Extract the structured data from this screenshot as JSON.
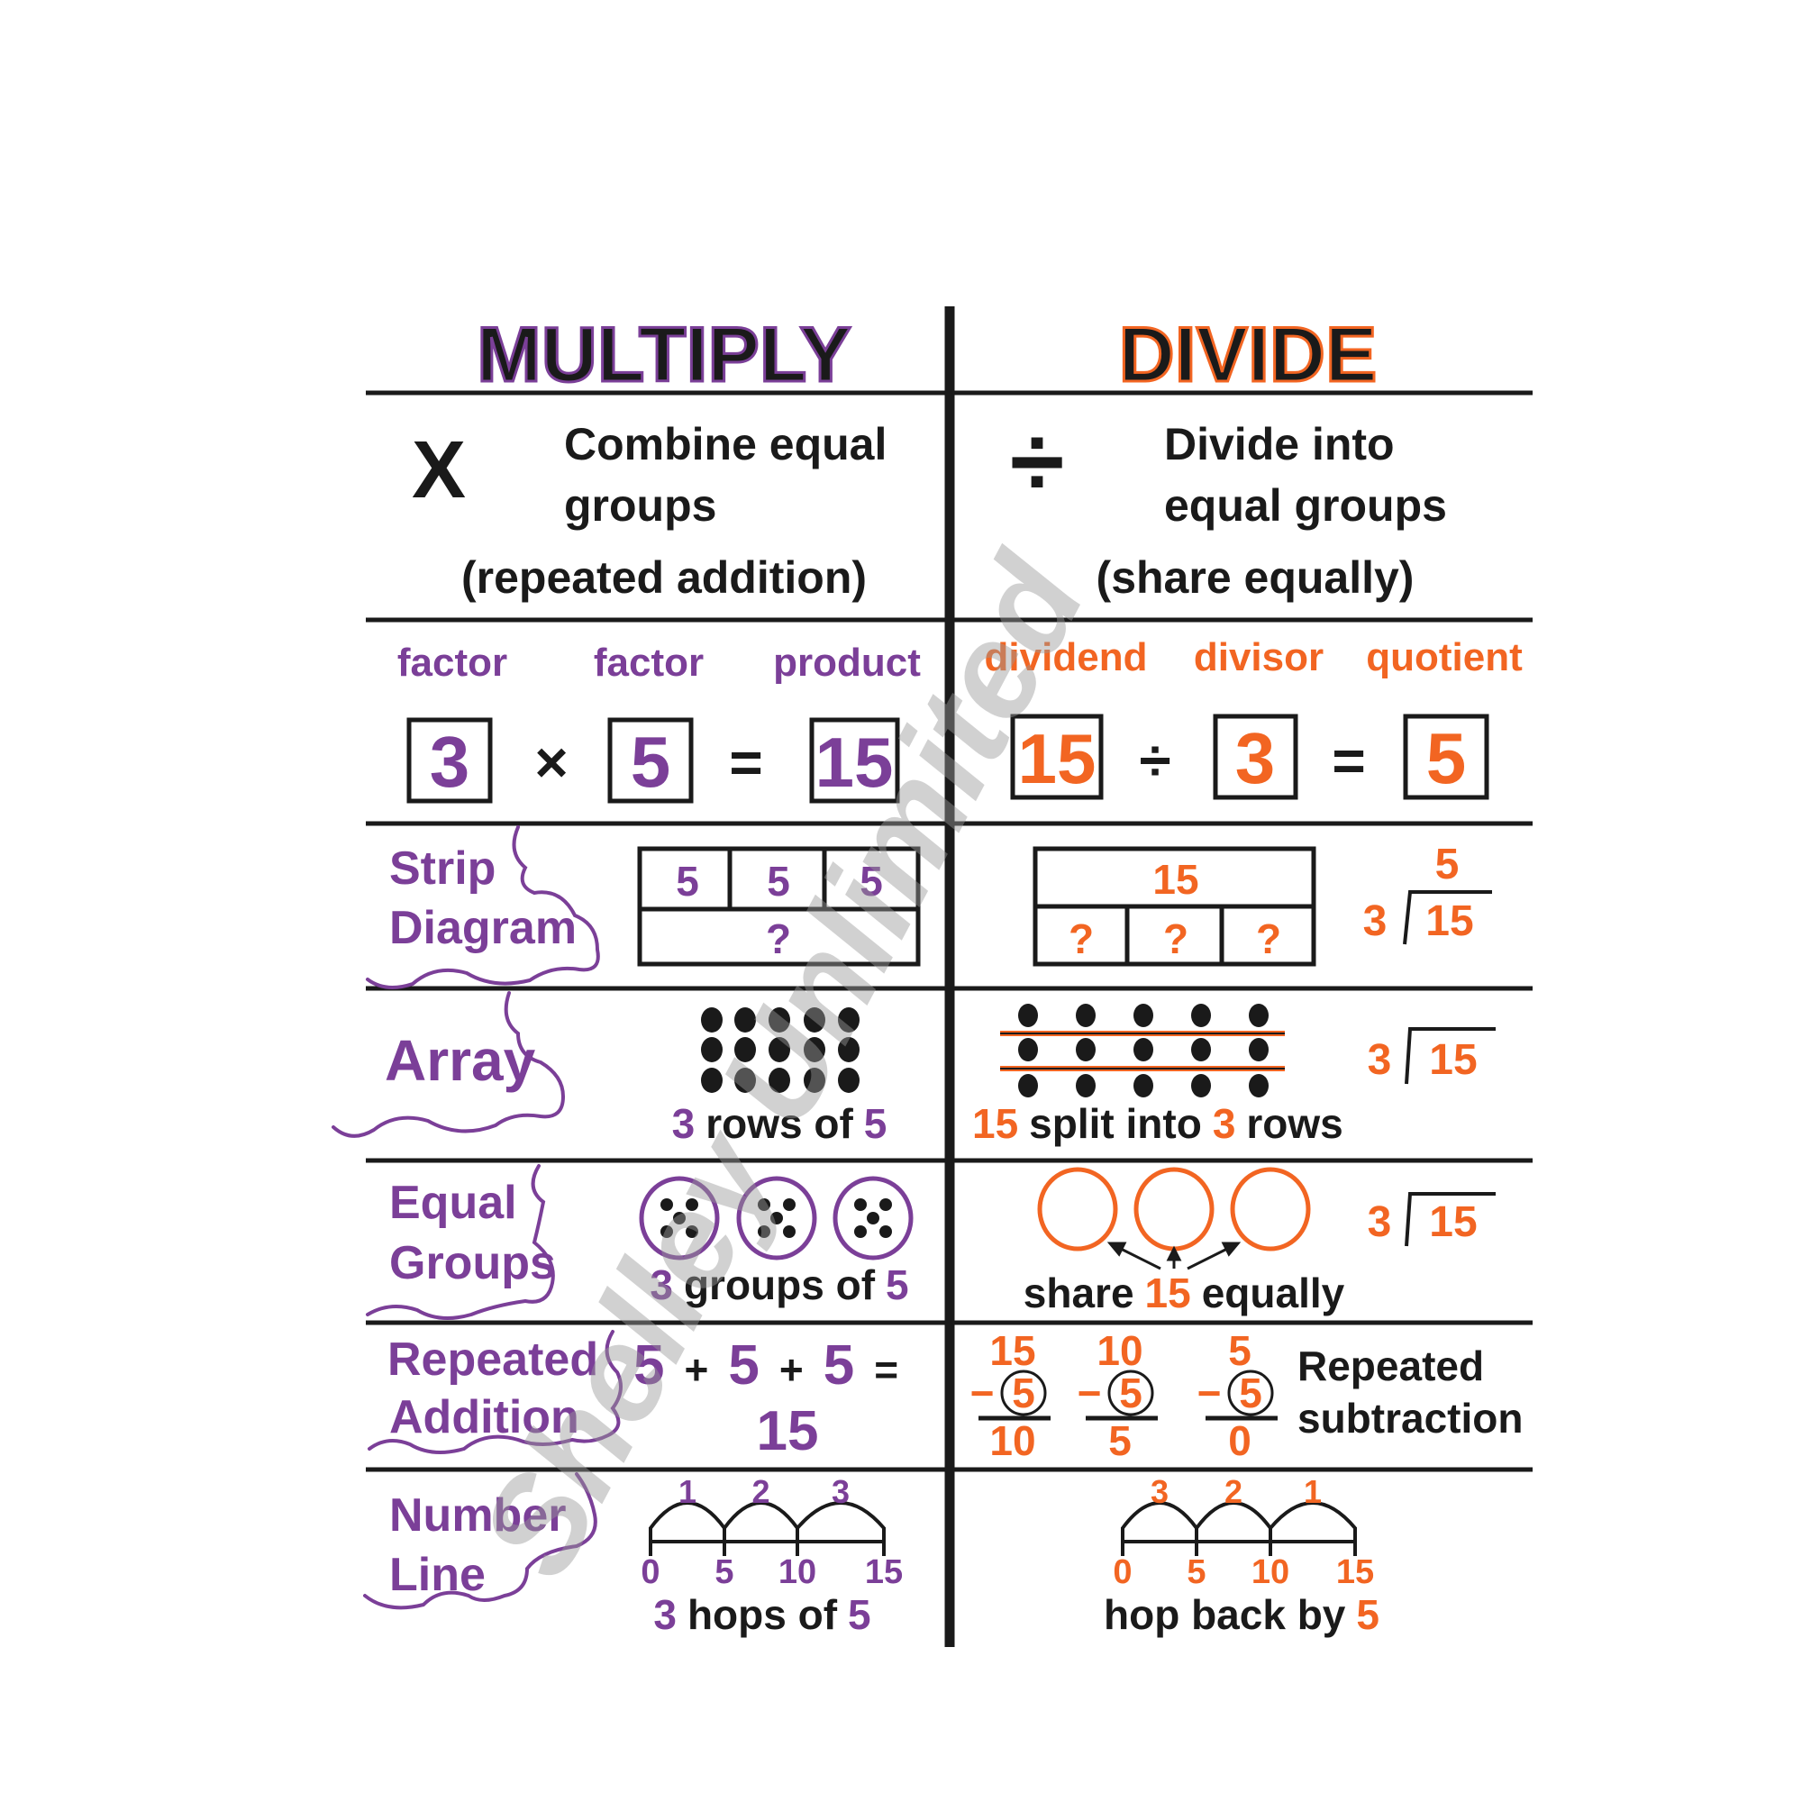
{
  "colors": {
    "multiply_accent": "#7b3f98",
    "divide_accent": "#f26522",
    "ink": "#1a1a1a"
  },
  "header": {
    "multiply": "MULTIPLY",
    "divide": "DIVIDE"
  },
  "definition": {
    "multiply_symbol": "X",
    "multiply_line1": "Combine equal",
    "multiply_line2": "groups",
    "multiply_note": "(repeated addition)",
    "divide_symbol": "÷",
    "divide_line1": "Divide into",
    "divide_line2": "equal groups",
    "divide_note": "(share equally)"
  },
  "vocabulary": {
    "multiply": [
      "factor",
      "factor",
      "product"
    ],
    "divide": [
      "dividend",
      "divisor",
      "quotient"
    ]
  },
  "equation": {
    "multiply": [
      "3",
      "×",
      "5",
      "=",
      "15"
    ],
    "divide": [
      "15",
      "÷",
      "3",
      "=",
      "5"
    ]
  },
  "strip": {
    "label1": "Strip",
    "label2": "Diagram",
    "multiply_parts": [
      "5",
      "5",
      "5"
    ],
    "multiply_total": "?",
    "divide_total": "15",
    "divide_parts": [
      "?",
      "?",
      "?"
    ],
    "long_division": {
      "quotient": "5",
      "divisor": "3",
      "dividend": "15"
    }
  },
  "array": {
    "label": "Array",
    "multiply_caption": [
      "3",
      "rows of",
      "5"
    ],
    "divide_caption": [
      "15",
      "split into",
      "3",
      "rows"
    ],
    "long_division": {
      "divisor": "3",
      "dividend": "15"
    }
  },
  "equal_groups": {
    "label1": "Equal",
    "label2": "Groups",
    "multiply_caption": [
      "3",
      "groups of",
      "5"
    ],
    "divide_caption": [
      "share",
      "15",
      "equally"
    ],
    "long_division": {
      "divisor": "3",
      "dividend": "15"
    }
  },
  "repeated": {
    "label1": "Repeated",
    "label2": "Addition",
    "addition": [
      "5",
      "+",
      "5",
      "+",
      "5",
      "="
    ],
    "sum": "15",
    "subtraction": [
      {
        "top": "15",
        "minus": "−",
        "sub": "5",
        "result": "10"
      },
      {
        "top": "10",
        "minus": "−",
        "sub": "5",
        "result": "5"
      },
      {
        "top": "5",
        "minus": "−",
        "sub": "5",
        "result": "0"
      }
    ],
    "divide_label1": "Repeated",
    "divide_label2": "subtraction"
  },
  "number_line": {
    "label1": "Number",
    "label2": "Line",
    "ticks": [
      "0",
      "5",
      "10",
      "15"
    ],
    "multiply_hops": [
      "1",
      "2",
      "3"
    ],
    "divide_hops": [
      "3",
      "2",
      "1"
    ],
    "multiply_caption": [
      "3",
      "hops of",
      "5"
    ],
    "divide_caption": [
      "hop back by",
      "5"
    ]
  },
  "watermark": "Shelley Unlimited"
}
